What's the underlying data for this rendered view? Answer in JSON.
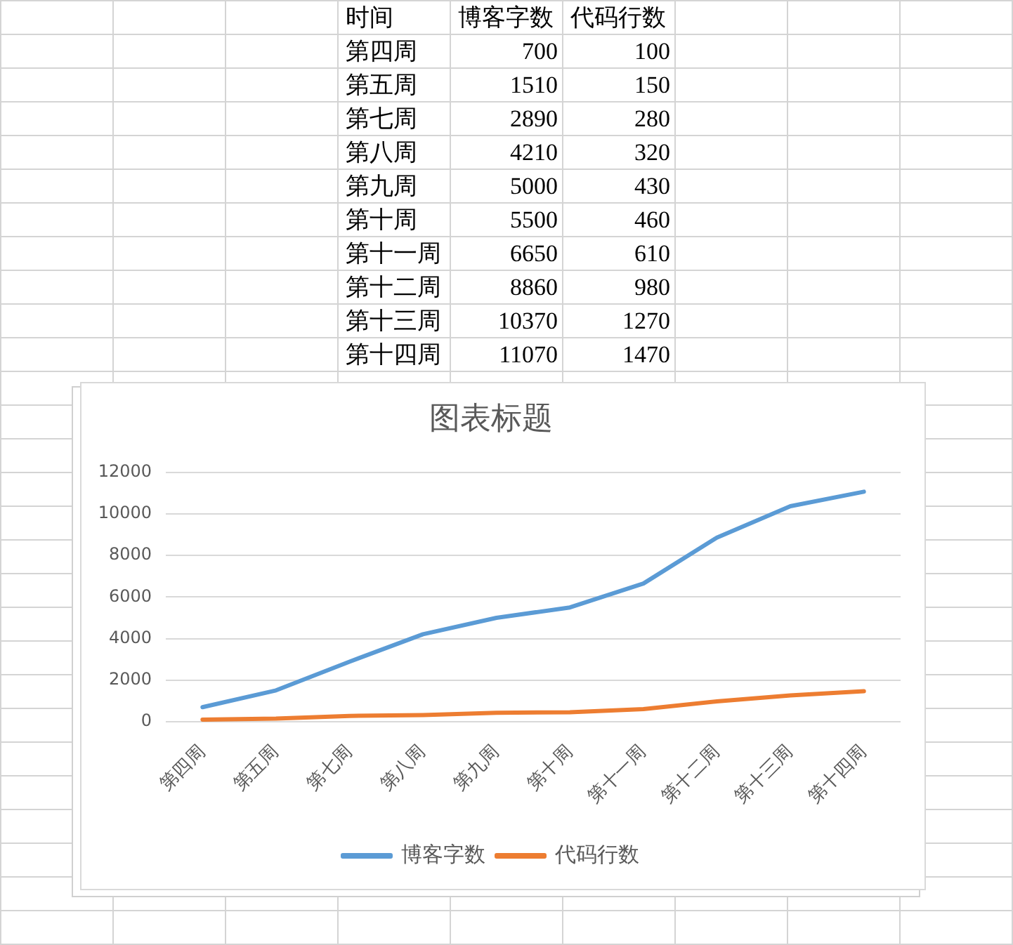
{
  "chart_data": [
    {
      "type": "other",
      "annotations": [
        "时间"
      ],
      "data_labels": true,
      "categories": [
        "第四周",
        "第五周",
        "第七周",
        "第八周",
        "第九周",
        "第十周",
        "第十一周",
        "第十二周",
        "第十三周",
        "第十四周"
      ],
      "series": [
        {
          "name": "博客字数",
          "values": [
            700,
            1510,
            2890,
            4210,
            5000,
            5500,
            6650,
            8860,
            10370,
            11070
          ]
        },
        {
          "name": "代码行数",
          "values": [
            100,
            150,
            280,
            320,
            430,
            460,
            610,
            980,
            1270,
            1470
          ]
        }
      ]
    },
    {
      "type": "line",
      "title": "图表标题",
      "categories": [
        "第四周",
        "第五周",
        "第七周",
        "第八周",
        "第九周",
        "第十周",
        "第十一周",
        "第十二周",
        "第十三周",
        "第十四周"
      ],
      "series": [
        {
          "name": "博客字数",
          "color": "#5b9bd5",
          "values": [
            700,
            1510,
            2890,
            4210,
            5000,
            5500,
            6650,
            8860,
            10370,
            11070
          ]
        },
        {
          "name": "代码行数",
          "color": "#ed7d31",
          "values": [
            100,
            150,
            280,
            320,
            430,
            460,
            610,
            980,
            1270,
            1470
          ]
        }
      ],
      "ylim": [
        0,
        12000
      ],
      "yticks": [
        0,
        2000,
        4000,
        6000,
        8000,
        10000,
        12000
      ],
      "grid": "y",
      "legend": "bottom",
      "marker": "none",
      "line_style": "solid"
    }
  ]
}
